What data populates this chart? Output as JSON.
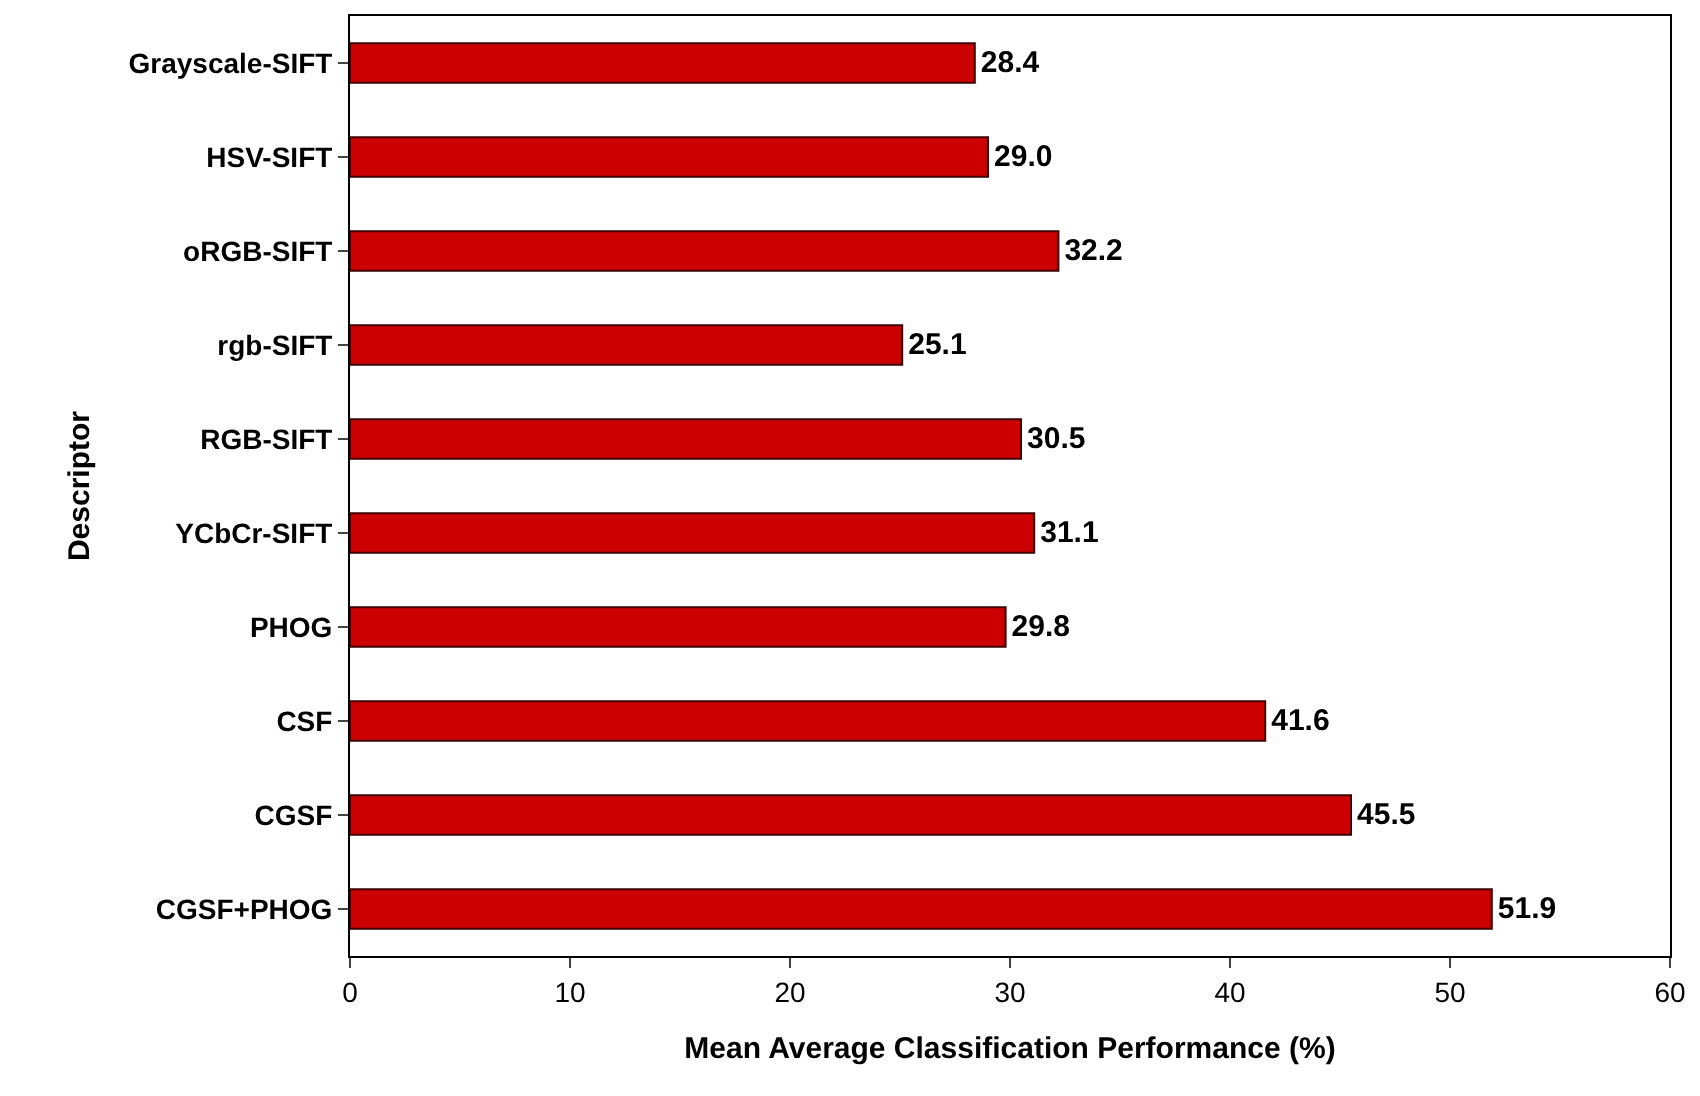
{
  "chart_data": {
    "type": "bar",
    "orientation": "horizontal",
    "xlabel": "Mean Average Classification Performance (%)",
    "ylabel": "Descriptor",
    "categories": [
      "Grayscale-SIFT",
      "HSV-SIFT",
      "oRGB-SIFT",
      "rgb-SIFT",
      "RGB-SIFT",
      "YCbCr-SIFT",
      "PHOG",
      "CSF",
      "CGSF",
      "CGSF+PHOG"
    ],
    "values": [
      28.4,
      29.0,
      32.2,
      25.1,
      30.5,
      31.1,
      29.8,
      41.6,
      45.5,
      51.9
    ],
    "value_labels": [
      "28.4",
      "29.0",
      "32.2",
      "25.1",
      "30.5",
      "31.1",
      "29.8",
      "41.6",
      "45.5",
      "51.9"
    ],
    "color": "#cc0000",
    "xlim": [
      0,
      60
    ],
    "xticks": [
      0,
      10,
      20,
      30,
      40,
      50,
      60
    ]
  }
}
